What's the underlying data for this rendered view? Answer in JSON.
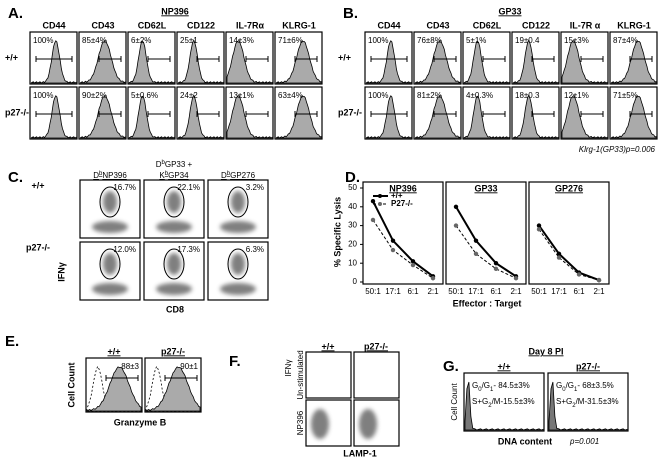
{
  "panels": {
    "A": {
      "label": "A.",
      "title": "NP396",
      "columns": [
        "CD44",
        "CD43",
        "CD62L",
        "CD122",
        "IL-7Rα",
        "KLRG-1"
      ],
      "rows": [
        {
          "label": "+/+",
          "values": [
            "100%",
            "85±4%",
            "6±2%",
            "25±1",
            "14±3%",
            "71±6%"
          ]
        },
        {
          "label": "p27-/-",
          "values": [
            "100%",
            "90±2%",
            "5±0.6%",
            "24±2",
            "13±1%",
            "63±4%"
          ]
        }
      ]
    },
    "B": {
      "label": "B.",
      "title": "GP33",
      "columns": [
        "CD44",
        "CD43",
        "CD62L",
        "CD122",
        "IL-7R α",
        "KLRG-1"
      ],
      "rows": [
        {
          "label": "+/+",
          "values": [
            "100%",
            "76±8%",
            "5±1%",
            "19±0.4",
            "15±3%",
            "87±4%"
          ]
        },
        {
          "label": "p27-/-",
          "values": [
            "100%",
            "81±2%",
            "4±0.3%",
            "18±0.3",
            "12±1%",
            "71±5%"
          ]
        }
      ],
      "note": "Klrg-1(GP33)p=0.006"
    },
    "C": {
      "label": "C.",
      "columns": [
        [
          [
            {
              "t": "D"
            },
            {
              "t": "b",
              "sup": true
            },
            {
              "t": "NP396"
            }
          ]
        ],
        [
          [
            {
              "t": "D"
            },
            {
              "t": "b",
              "sup": true
            },
            {
              "t": "GP33 +"
            }
          ],
          [
            {
              "t": "K"
            },
            {
              "t": "b",
              "sup": true
            },
            {
              "t": "GP34"
            }
          ]
        ],
        [
          [
            {
              "t": "D"
            },
            {
              "t": "b",
              "sup": true
            },
            {
              "t": "GP276"
            }
          ]
        ]
      ],
      "rows": [
        {
          "label": "+/+",
          "values": [
            "16.7%",
            "22.1%",
            "3.2%"
          ]
        },
        {
          "label": "p27-/-",
          "values": [
            "12.0%",
            "17.3%",
            "6.3%"
          ]
        }
      ],
      "y_label": "IFNγ",
      "x_label": "CD8"
    },
    "D": {
      "label": "D.",
      "type": "line",
      "categories": [
        "50:1",
        "17:1",
        "6:1",
        "2:1"
      ],
      "series_names": [
        "+/+",
        "P27-/-"
      ],
      "subplots": [
        {
          "title": "NP396",
          "values": [
            [
              43,
              22,
              11,
              3
            ],
            [
              33,
              17,
              9,
              2
            ]
          ]
        },
        {
          "title": "GP33",
          "values": [
            [
              40,
              22,
              10,
              3
            ],
            [
              30,
              15,
              7,
              2
            ]
          ]
        },
        {
          "title": "GP276",
          "values": [
            [
              30,
              15,
              5,
              1
            ],
            [
              28,
              13,
              4,
              1
            ]
          ]
        }
      ],
      "ylim": [
        0,
        50
      ],
      "yticks": [
        0,
        10,
        20,
        30,
        40,
        50
      ],
      "y_label": "% Specific Lysis",
      "x_label": "Effector : Target"
    },
    "E": {
      "label": "E.",
      "columns": [
        "+/+",
        "p27-/-"
      ],
      "values": [
        "88±3",
        "90±1"
      ],
      "y_label": "Cell Count",
      "x_label": "Granzyme B"
    },
    "F": {
      "label": "F.",
      "columns": [
        "+/+",
        "p27-/-"
      ],
      "rows": [
        "Un-stimulated",
        "NP396"
      ],
      "y_label": "IFNγ",
      "x_label": "LAMP-1"
    },
    "G": {
      "label": "G.",
      "title": "Day 8 PI",
      "columns": [
        "+/+",
        "p27-/-"
      ],
      "boxes": [
        [
          [
            {
              "t": "G"
            },
            {
              "t": "0",
              "sub": true
            },
            {
              "t": "/G"
            },
            {
              "t": "1",
              "sub": true
            },
            {
              "t": "- 84.5±3%"
            }
          ],
          [
            {
              "t": "S+G"
            },
            {
              "t": "2",
              "sub": true
            },
            {
              "t": "/M-15.5±3%"
            }
          ]
        ],
        [
          [
            {
              "t": "G"
            },
            {
              "t": "0",
              "sub": true
            },
            {
              "t": "/G"
            },
            {
              "t": "1",
              "sub": true
            },
            {
              "t": "- 68±3.5%"
            }
          ],
          [
            {
              "t": "S+G"
            },
            {
              "t": "2",
              "sub": true
            },
            {
              "t": "/M-31.5±3%"
            }
          ]
        ]
      ],
      "y_label": "Cell Count",
      "x_label": "DNA content",
      "p_value": "p=0.001"
    }
  }
}
